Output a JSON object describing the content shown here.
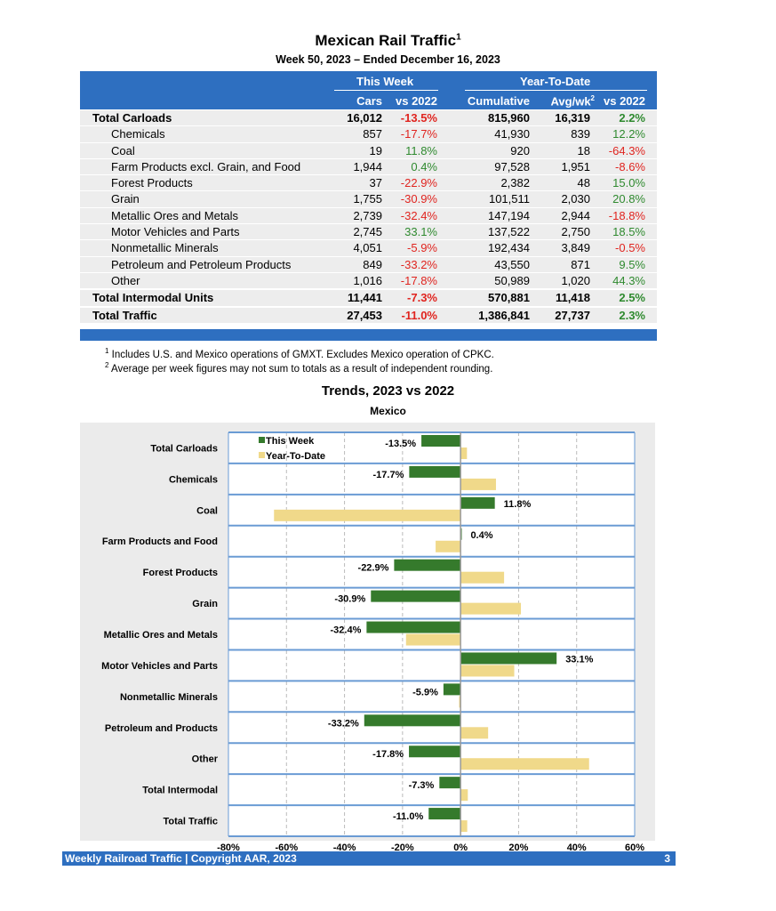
{
  "title": "Mexican Rail Traffic",
  "title_sup": "1",
  "subtitle": "Week 50, 2023 – Ended December 16, 2023",
  "table": {
    "group_this_week": "This Week",
    "group_ytd": "Year-To-Date",
    "col_cars": "Cars",
    "col_vs": "vs 2022",
    "col_cum": "Cumulative",
    "col_avg": "Avg/wk",
    "col_avg_sup": "2",
    "col_vs_ytd": "vs 2022",
    "rows": [
      {
        "label": "Total Carloads",
        "total": true,
        "cars": "16,012",
        "vs": "-13.5%",
        "cum": "815,960",
        "avg": "16,319",
        "vs_ytd": "2.2%"
      },
      {
        "label": "Chemicals",
        "cars": "857",
        "vs": "-17.7%",
        "cum": "41,930",
        "avg": "839",
        "vs_ytd": "12.2%"
      },
      {
        "label": "Coal",
        "cars": "19",
        "vs": "11.8%",
        "cum": "920",
        "avg": "18",
        "vs_ytd": "-64.3%"
      },
      {
        "label": "Farm Products excl. Grain, and Food",
        "cars": "1,944",
        "vs": "0.4%",
        "cum": "97,528",
        "avg": "1,951",
        "vs_ytd": "-8.6%"
      },
      {
        "label": "Forest Products",
        "cars": "37",
        "vs": "-22.9%",
        "cum": "2,382",
        "avg": "48",
        "vs_ytd": "15.0%"
      },
      {
        "label": "Grain",
        "cars": "1,755",
        "vs": "-30.9%",
        "cum": "101,511",
        "avg": "2,030",
        "vs_ytd": "20.8%"
      },
      {
        "label": "Metallic Ores and Metals",
        "cars": "2,739",
        "vs": "-32.4%",
        "cum": "147,194",
        "avg": "2,944",
        "vs_ytd": "-18.8%"
      },
      {
        "label": "Motor Vehicles and Parts",
        "cars": "2,745",
        "vs": "33.1%",
        "cum": "137,522",
        "avg": "2,750",
        "vs_ytd": "18.5%"
      },
      {
        "label": "Nonmetallic Minerals",
        "cars": "4,051",
        "vs": "-5.9%",
        "cum": "192,434",
        "avg": "3,849",
        "vs_ytd": "-0.5%"
      },
      {
        "label": "Petroleum and Petroleum Products",
        "cars": "849",
        "vs": "-33.2%",
        "cum": "43,550",
        "avg": "871",
        "vs_ytd": "9.5%"
      },
      {
        "label": "Other",
        "cars": "1,016",
        "vs": "-17.8%",
        "cum": "50,989",
        "avg": "1,020",
        "vs_ytd": "44.3%"
      },
      {
        "label": "Total Intermodal Units",
        "total": true,
        "cars": "11,441",
        "vs": "-7.3%",
        "cum": "570,881",
        "avg": "11,418",
        "vs_ytd": "2.5%"
      },
      {
        "label": "Total Traffic",
        "total": true,
        "cars": "27,453",
        "vs": "-11.0%",
        "cum": "1,386,841",
        "avg": "27,737",
        "vs_ytd": "2.3%"
      }
    ]
  },
  "notes": [
    {
      "sup": "1",
      "text": "Includes U.S. and Mexico operations of GMXT. Excludes Mexico operation of CPKC."
    },
    {
      "sup": "2",
      "text": "Average per week figures may not sum to totals as a result of independent rounding."
    }
  ],
  "chart_data": {
    "type": "bar",
    "orientation": "horizontal",
    "title": "Trends, 2023 vs 2022",
    "subtitle": "Mexico",
    "categories": [
      "Total Carloads",
      "Chemicals",
      "Coal",
      "Farm Products and Food",
      "Forest Products",
      "Grain",
      "Metallic Ores and Metals",
      "Motor Vehicles and Parts",
      "Nonmetallic Minerals",
      "Petroleum and Products",
      "Other",
      "Total Intermodal",
      "Total Traffic"
    ],
    "series": [
      {
        "name": "This Week",
        "color": "#357a2c",
        "values": [
          -13.5,
          -17.7,
          11.8,
          0.4,
          -22.9,
          -30.9,
          -32.4,
          33.1,
          -5.9,
          -33.2,
          -17.8,
          -7.3,
          -11.0
        ],
        "labels": [
          "-13.5%",
          "-17.7%",
          "11.8%",
          "0.4%",
          "-22.9%",
          "-30.9%",
          "-32.4%",
          "33.1%",
          "-5.9%",
          "-33.2%",
          "-17.8%",
          "-7.3%",
          "-11.0%"
        ]
      },
      {
        "name": "Year-To-Date",
        "color": "#f0d98a",
        "values": [
          2.2,
          12.2,
          -64.3,
          -8.6,
          15.0,
          20.8,
          -18.8,
          18.5,
          -0.5,
          9.5,
          44.3,
          2.5,
          2.3
        ]
      }
    ],
    "xlim": [
      -80,
      60
    ],
    "xticks": [
      "-80%",
      "-60%",
      "-40%",
      "-20%",
      "0%",
      "20%",
      "40%",
      "60%"
    ],
    "legend": "top-left"
  },
  "footer": {
    "text": "Weekly Railroad Traffic | Copyright AAR, 2023",
    "page": "3"
  }
}
